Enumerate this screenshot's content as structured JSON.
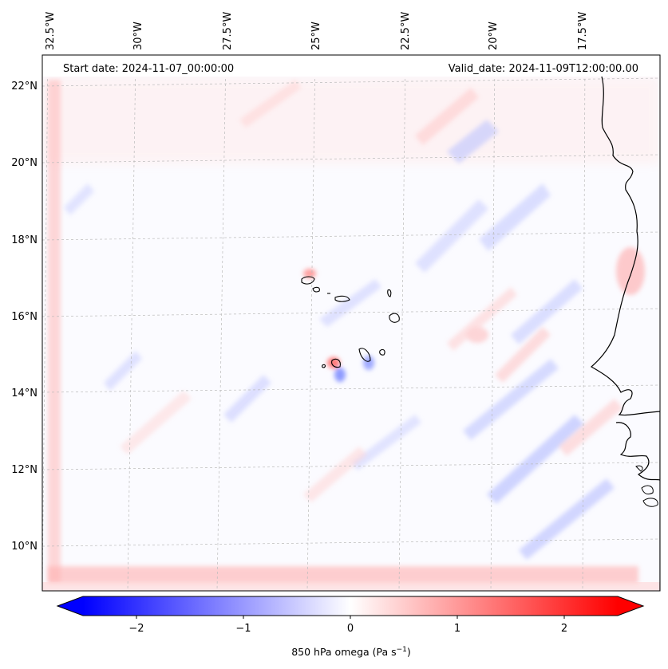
{
  "map": {
    "start_label": "Start date: 2024-11-07_00:00:00",
    "valid_label": "Valid_date: 2024-11-09T12:00:00.00",
    "lon_labels": [
      "32.5°W",
      "30°W",
      "27.5°W",
      "25°W",
      "22.5°W",
      "20°W",
      "17.5°W"
    ],
    "lat_labels": [
      "22°N",
      "20°N",
      "18°N",
      "16°N",
      "14°N",
      "12°N",
      "10°N"
    ]
  },
  "colorbar": {
    "label_main": "850 hPa omega (Pa s",
    "label_sup": "−1",
    "label_end": ")",
    "ticks": [
      "−2",
      "−1",
      "0",
      "1",
      "2"
    ]
  },
  "colors": {
    "negative": "#0000ff",
    "positive": "#ff0000",
    "neutral": "#ffffff",
    "coast": "#000000",
    "grid": "#bbbbbb"
  }
}
